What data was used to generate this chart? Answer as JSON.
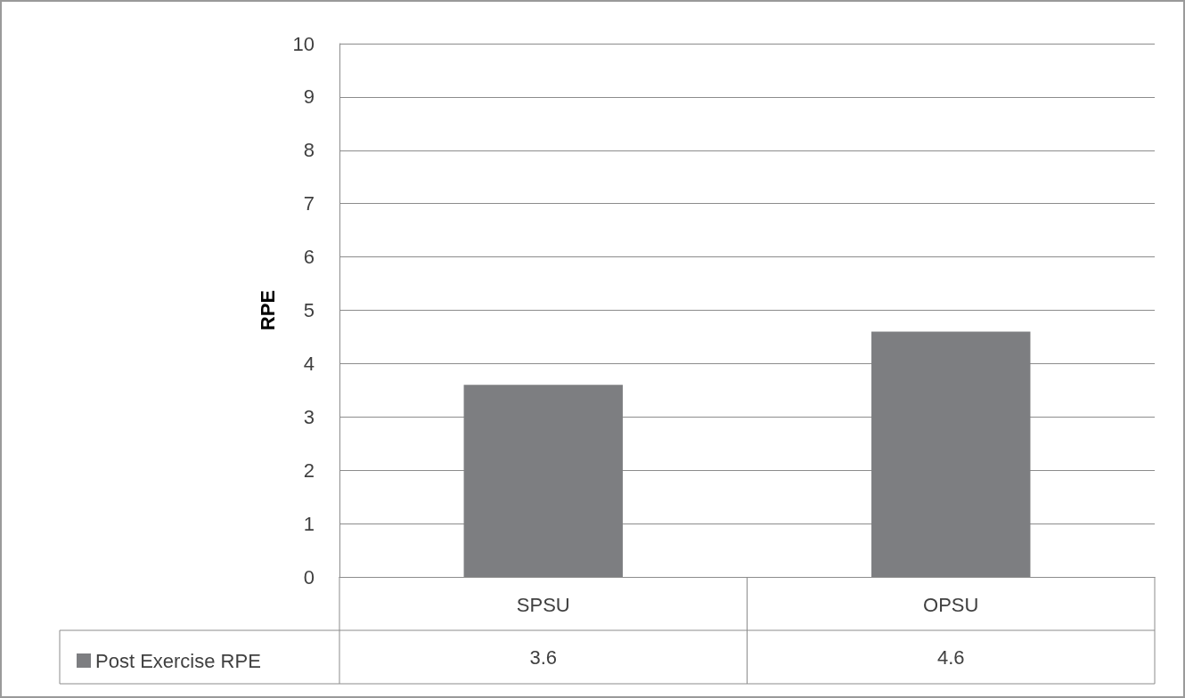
{
  "chart_data": {
    "type": "bar",
    "ylabel": "RPE",
    "categories": [
      "SPSU",
      "OPSU"
    ],
    "series": [
      {
        "name": "Post Exercise RPE",
        "color": "#7d7e81",
        "values": [
          3.6,
          4.6
        ]
      }
    ],
    "ylim": [
      0,
      10
    ],
    "yticks": [
      0,
      1,
      2,
      3,
      4,
      5,
      6,
      7,
      8,
      9,
      10
    ],
    "grid": "y",
    "legend": "bottom left",
    "data_labels": true
  }
}
